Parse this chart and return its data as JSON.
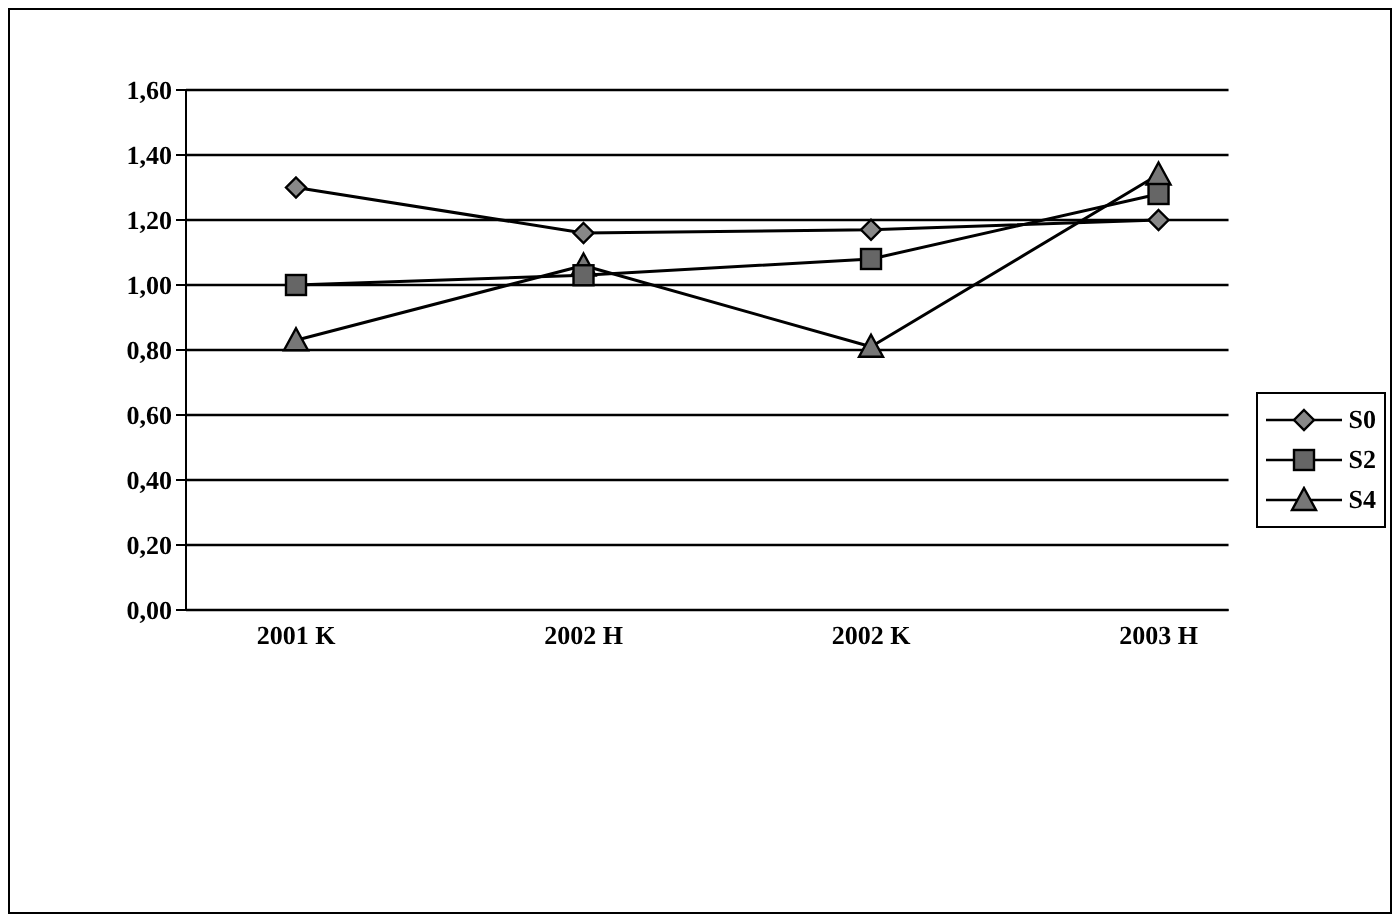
{
  "chart_data": {
    "type": "line",
    "categories": [
      "2001 K",
      "2002 H",
      "2002 K",
      "2003 H"
    ],
    "series": [
      {
        "name": "S0",
        "color": "#000000",
        "marker": "diamond",
        "values": [
          1.3,
          1.16,
          1.17,
          1.2
        ]
      },
      {
        "name": "S2",
        "color": "#000000",
        "marker": "square",
        "values": [
          1.0,
          1.03,
          1.08,
          1.28
        ]
      },
      {
        "name": "S4",
        "color": "#000000",
        "marker": "triangle",
        "values": [
          0.83,
          1.06,
          0.81,
          1.34
        ]
      }
    ],
    "ylim": [
      0,
      1.6
    ],
    "yticks": [
      {
        "value": 0,
        "label": "0,00"
      },
      {
        "value": 0.2,
        "label": "0,20"
      },
      {
        "value": 0.4,
        "label": "0,40"
      },
      {
        "value": 0.6,
        "label": "0,60"
      },
      {
        "value": 0.8,
        "label": "0,80"
      },
      {
        "value": 1.0,
        "label": "1,00"
      },
      {
        "value": 1.2,
        "label": "1,20"
      },
      {
        "value": 1.4,
        "label": "1,40"
      },
      {
        "value": 1.6,
        "label": "1,60"
      }
    ],
    "grid": "y",
    "legend": "right",
    "line_style": "solid"
  }
}
